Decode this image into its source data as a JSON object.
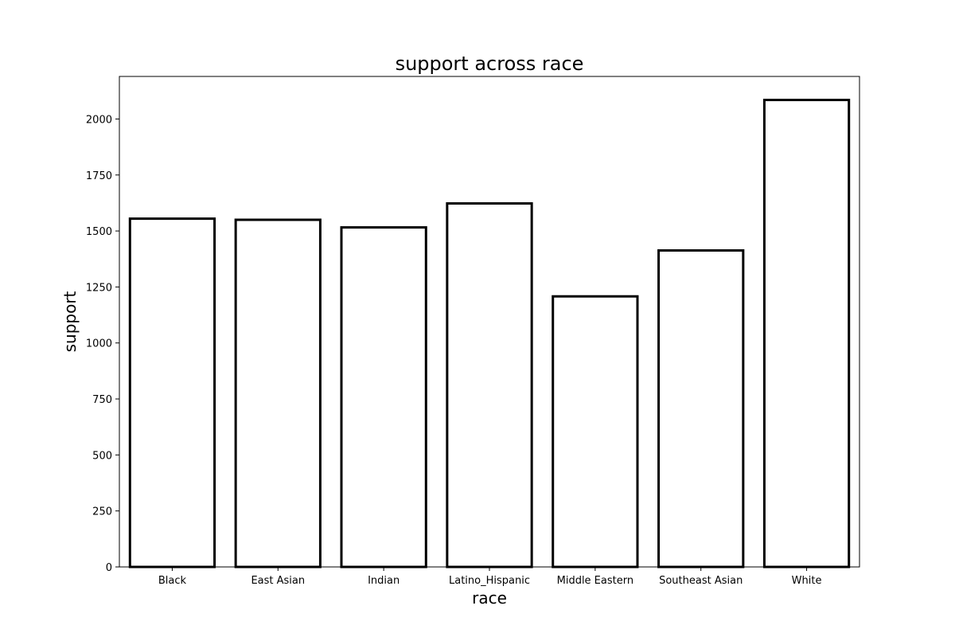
{
  "chart_data": {
    "type": "bar",
    "title": "support across race",
    "xlabel": "race",
    "ylabel": "support",
    "categories": [
      "Black",
      "East Asian",
      "Indian",
      "Latino_Hispanic",
      "Middle Eastern",
      "Southeast Asian",
      "White"
    ],
    "values": [
      1555,
      1550,
      1516,
      1623,
      1208,
      1413,
      2085
    ],
    "ylim": [
      0,
      2190
    ],
    "yticks": [
      0,
      250,
      500,
      750,
      1000,
      1250,
      1500,
      1750,
      2000
    ],
    "grid": false,
    "bar_fill": "#ffffff",
    "bar_edge": "#000000"
  }
}
